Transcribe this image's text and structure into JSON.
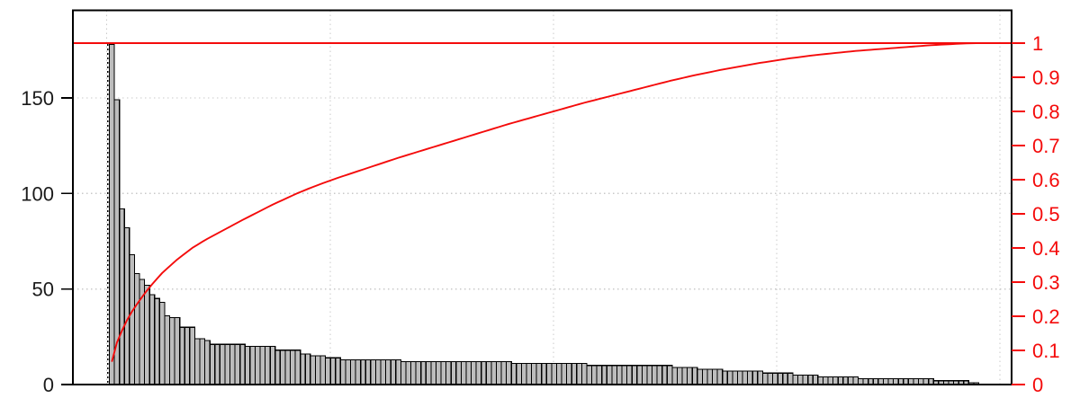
{
  "chart_data": {
    "type": "bar",
    "subtype": "pareto",
    "title": "",
    "xlabel": "",
    "ylabel": "",
    "n_bars": 172,
    "values": [
      178,
      149,
      92,
      82,
      68,
      58,
      55,
      52,
      47,
      45,
      43,
      36,
      35,
      35,
      30,
      30,
      30,
      24,
      24,
      23,
      21,
      21,
      21,
      21,
      21,
      21,
      21,
      20,
      20,
      20,
      20,
      20,
      20,
      18,
      18,
      18,
      18,
      18,
      16,
      16,
      15,
      15,
      15,
      14,
      14,
      14,
      13,
      13,
      13,
      13,
      13,
      13,
      13,
      13,
      13,
      13,
      13,
      13,
      12,
      12,
      12,
      12,
      12,
      12,
      12,
      12,
      12,
      12,
      12,
      12,
      12,
      12,
      12,
      12,
      12,
      12,
      12,
      12,
      12,
      12,
      11,
      11,
      11,
      11,
      11,
      11,
      11,
      11,
      11,
      11,
      11,
      11,
      11,
      11,
      11,
      10,
      10,
      10,
      10,
      10,
      10,
      10,
      10,
      10,
      10,
      10,
      10,
      10,
      10,
      10,
      10,
      10,
      9,
      9,
      9,
      9,
      9,
      8,
      8,
      8,
      8,
      8,
      7,
      7,
      7,
      7,
      7,
      7,
      7,
      7,
      6,
      6,
      6,
      6,
      6,
      6,
      5,
      5,
      5,
      5,
      5,
      4,
      4,
      4,
      4,
      4,
      4,
      4,
      4,
      3,
      3,
      3,
      3,
      3,
      3,
      3,
      3,
      3,
      3,
      3,
      3,
      3,
      3,
      3,
      2,
      2,
      2,
      2,
      2,
      2,
      2,
      1,
      1
    ],
    "left_axis": {
      "tick_labels": [
        "0",
        "50",
        "100",
        "150"
      ],
      "tick_values": [
        0,
        50,
        100,
        150
      ],
      "range": [
        0,
        196
      ]
    },
    "right_axis": {
      "tick_labels": [
        "0",
        "0.1",
        "0.2",
        "0.3",
        "0.4",
        "0.5",
        "0.6",
        "0.7",
        "0.8",
        "0.9",
        "1"
      ],
      "tick_values": [
        0,
        0.1,
        0.2,
        0.3,
        0.4,
        0.5,
        0.6,
        0.7,
        0.8,
        0.9,
        1
      ],
      "range": [
        0,
        1
      ]
    },
    "cumulative_curve": {
      "derived_from": "values",
      "start_fraction": 0.067,
      "end_fraction": 1.0
    },
    "reference_line": {
      "axis": "right",
      "value": 1
    },
    "marker_line": {
      "orientation": "vertical",
      "at_bar": 1,
      "style": "dotted-black"
    },
    "grid": {
      "horizontal_at_left_values": [
        50,
        100,
        150
      ],
      "vertical_line_count": 5,
      "style": "dotted"
    },
    "legend": "none",
    "colors": {
      "bar_fill": "#bdbdbd",
      "bar_border": "#000000",
      "red": "#f40b0b",
      "left_axis_text": "#1a1a1a",
      "grid": "#c9c9c9",
      "box_border": "#000000",
      "background": "#ffffff"
    }
  }
}
